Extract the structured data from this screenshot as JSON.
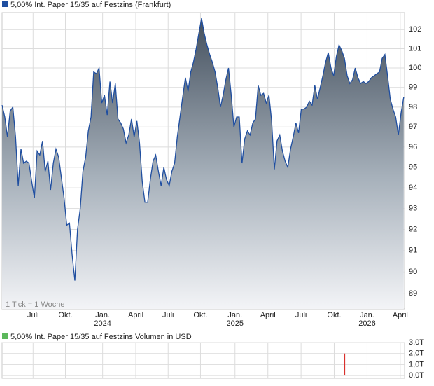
{
  "chart_data": [
    {
      "type": "area",
      "title": "5,00% Int. Paper 15/35 auf Festzins (Frankfurt)",
      "note": "1 Tick = 1 Woche",
      "log_scale": true,
      "grid": true,
      "color": "#1f4ea0",
      "legend_color": "#1f4ea0",
      "values": [
        98.1,
        97.5,
        96.5,
        97.8,
        98.0,
        96.5,
        94.1,
        95.9,
        95.2,
        95.3,
        95.2,
        94.3,
        93.5,
        95.8,
        95.6,
        96.3,
        94.8,
        95.3,
        93.9,
        95.2,
        95.9,
        95.5,
        94.5,
        93.5,
        92.2,
        92.3,
        90.8,
        89.6,
        92.0,
        93.0,
        94.8,
        95.5,
        96.8,
        97.5,
        99.8,
        99.7,
        100.0,
        98.2,
        98.6,
        97.6,
        99.3,
        98.2,
        99.2,
        97.4,
        97.2,
        96.9,
        96.2,
        96.6,
        97.4,
        96.5,
        97.3,
        96.2,
        94.3,
        93.3,
        93.3,
        94.4,
        95.3,
        95.6,
        94.8,
        94.1,
        95.0,
        94.4,
        94.1,
        94.8,
        95.2,
        96.5,
        97.5,
        98.5,
        99.5,
        98.8,
        99.8,
        100.3,
        101.0,
        101.8,
        102.6,
        101.8,
        101.2,
        100.7,
        100.3,
        99.8,
        99.0,
        98.0,
        98.6,
        99.4,
        100.0,
        98.6,
        97.0,
        97.5,
        97.5,
        95.2,
        96.4,
        96.8,
        96.6,
        97.2,
        97.4,
        99.1,
        98.6,
        98.7,
        98.2,
        98.6,
        97.3,
        94.9,
        96.3,
        96.6,
        95.8,
        95.3,
        95.0,
        95.9,
        96.5,
        97.2,
        96.7,
        97.9,
        97.9,
        98.0,
        98.3,
        98.1,
        99.1,
        98.4,
        99.0,
        99.6,
        100.3,
        100.8,
        100.0,
        99.6,
        100.6,
        101.2,
        100.9,
        100.5,
        99.6,
        99.2,
        99.4,
        100.0,
        99.5,
        99.2,
        99.3,
        99.2,
        99.3,
        99.5,
        99.6,
        99.7,
        99.8,
        100.5,
        100.7,
        99.6,
        98.4,
        97.9,
        97.5,
        96.6,
        97.7,
        98.5
      ],
      "xlim": [
        0,
        149.3
      ],
      "xticks": [
        {
          "value": 11.5,
          "label": "Juli"
        },
        {
          "value": 23.5,
          "label": "Okt."
        },
        {
          "value": 37.3,
          "label": "Jan.",
          "year": "2024"
        },
        {
          "value": 49.6,
          "label": "April"
        },
        {
          "value": 61.6,
          "label": "Juli"
        },
        {
          "value": 73.6,
          "label": "Okt."
        },
        {
          "value": 86.4,
          "label": "Jan.",
          "year": "2025"
        },
        {
          "value": 98.6,
          "label": "April"
        },
        {
          "value": 110.9,
          "label": "Juli"
        },
        {
          "value": 123.2,
          "label": "Okt."
        },
        {
          "value": 135.4,
          "label": "Jan.",
          "year": "2026"
        },
        {
          "value": 147.7,
          "label": "April"
        }
      ],
      "ylim": [
        88.3,
        102.9
      ],
      "yticks": [
        89,
        90,
        91,
        92,
        93,
        94,
        95,
        96,
        97,
        98,
        99,
        100,
        101,
        102
      ]
    },
    {
      "type": "bar",
      "title": "5,00% Int. Paper 15/35 auf Festzins Volumen in USD",
      "legend_color": "#5cb85c",
      "color": "#d9302c",
      "bars": [
        {
          "index": 127,
          "value": 2.0
        }
      ],
      "ylim": [
        -0.25,
        3.0
      ],
      "yticks": [
        {
          "value": 3,
          "label": "3,0T"
        },
        {
          "value": 2,
          "label": "2,0T"
        },
        {
          "value": 1,
          "label": "1,0T"
        },
        {
          "value": 0,
          "label": "0,0T"
        }
      ]
    }
  ]
}
